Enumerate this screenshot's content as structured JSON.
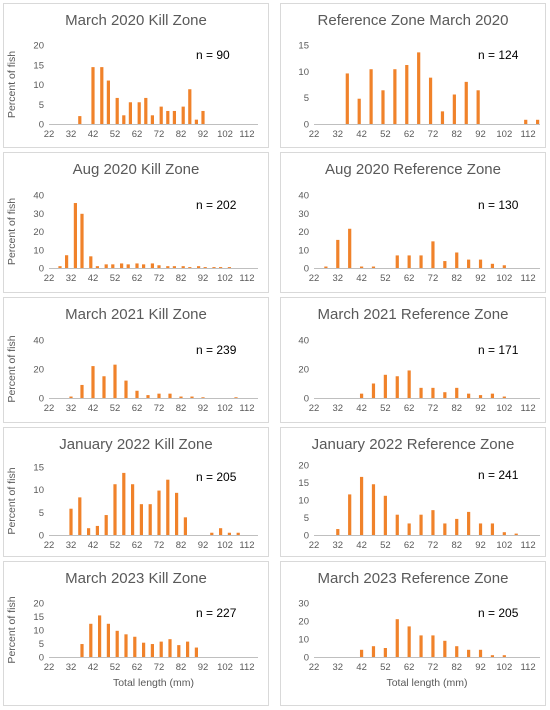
{
  "style": {
    "bar_color": "#F0822A",
    "axis_color": "#BFBFBF",
    "border_color": "#D9D9D9"
  },
  "chart_data": [
    {
      "type": "bar",
      "title": "March 2020 Kill Zone",
      "n_label": "n = 90",
      "ylabel": "Percent of fish",
      "xlabel": "",
      "ylim": [
        0,
        20
      ],
      "yticks": [
        0,
        5,
        10,
        15,
        20
      ],
      "xtick_labels": [
        "22",
        "32",
        "42",
        "52",
        "62",
        "72",
        "82",
        "92",
        "102",
        "112"
      ],
      "x": [
        32,
        36,
        39,
        42,
        46,
        49,
        53,
        56,
        59,
        63,
        66,
        69,
        73,
        76,
        79,
        83,
        86,
        89,
        92,
        96,
        99,
        102,
        106,
        109,
        112
      ],
      "values": [
        0,
        2,
        0,
        14.4,
        14.4,
        11,
        6.6,
        2.2,
        5.5,
        5.5,
        6.6,
        2.2,
        4.4,
        3.3,
        3.3,
        4.4,
        8.8,
        1.1,
        3.3,
        0,
        0,
        0,
        0,
        0,
        0
      ]
    },
    {
      "type": "bar",
      "title": "Reference Zone March 2020",
      "n_label": "n = 124",
      "ylabel": "",
      "xlabel": "",
      "ylim": [
        0,
        15
      ],
      "yticks": [
        0,
        5,
        10,
        15
      ],
      "xtick_labels": [
        "22",
        "32",
        "42",
        "52",
        "62",
        "72",
        "82",
        "92",
        "102",
        "112"
      ],
      "x": [
        36,
        41,
        46,
        51,
        56,
        61,
        66,
        71,
        76,
        81,
        86,
        91,
        96,
        101,
        106,
        111,
        116
      ],
      "values": [
        9.6,
        4.8,
        10.4,
        6.4,
        10.4,
        11.2,
        13.6,
        8.8,
        2.4,
        5.6,
        8,
        6.4,
        0,
        0,
        0,
        0.8,
        0.8
      ]
    },
    {
      "type": "bar",
      "title": "Aug 2020 Kill Zone",
      "n_label": "n = 202",
      "ylabel": "Percent of fish",
      "xlabel": "",
      "ylim": [
        0,
        40
      ],
      "yticks": [
        0,
        10,
        20,
        30,
        40
      ],
      "xtick_labels": [
        "22",
        "32",
        "42",
        "52",
        "62",
        "72",
        "82",
        "92",
        "102",
        "112"
      ],
      "x": [
        27,
        30,
        34,
        37,
        41,
        44,
        48,
        51,
        55,
        58,
        62,
        65,
        69,
        72,
        76,
        79,
        83,
        86,
        90,
        93,
        97,
        100,
        104
      ],
      "values": [
        1,
        7,
        35.6,
        29.7,
        6.4,
        1,
        2,
        2,
        2.5,
        2,
        2.5,
        2,
        2.5,
        1.5,
        1,
        1,
        1,
        0.5,
        1,
        0.5,
        0.5,
        0.5,
        0.5
      ]
    },
    {
      "type": "bar",
      "title": "Aug 2020 Reference Zone",
      "n_label": "n = 130",
      "ylabel": "",
      "xlabel": "",
      "ylim": [
        0,
        40
      ],
      "yticks": [
        0,
        10,
        20,
        30,
        40
      ],
      "xtick_labels": [
        "22",
        "32",
        "42",
        "52",
        "62",
        "72",
        "82",
        "92",
        "102",
        "112"
      ],
      "x": [
        27,
        32,
        37,
        42,
        47,
        52,
        57,
        62,
        67,
        72,
        77,
        82,
        87,
        92,
        97,
        102
      ],
      "values": [
        0.8,
        15.4,
        21.5,
        0.8,
        0.8,
        0,
        6.9,
        6.9,
        6.9,
        14.6,
        3.8,
        8.5,
        4.6,
        4.6,
        2.3,
        1.5
      ]
    },
    {
      "type": "bar",
      "title": "March 2021 Kill Zone",
      "n_label": "n = 239",
      "ylabel": "Percent of fish",
      "xlabel": "",
      "ylim": [
        0,
        40
      ],
      "yticks": [
        0,
        20,
        40
      ],
      "xtick_labels": [
        "22",
        "32",
        "42",
        "52",
        "62",
        "72",
        "82",
        "92",
        "102",
        "112"
      ],
      "x": [
        32,
        37,
        42,
        47,
        52,
        57,
        62,
        67,
        72,
        77,
        82,
        87,
        92,
        97,
        102,
        107,
        112
      ],
      "values": [
        1,
        9,
        22,
        15,
        23,
        12,
        5,
        2,
        3,
        3,
        1,
        1,
        0.5,
        0,
        0,
        0.5,
        0
      ]
    },
    {
      "type": "bar",
      "title": "March 2021 Reference Zone",
      "n_label": "n = 171",
      "ylabel": "",
      "xlabel": "",
      "ylim": [
        0,
        40
      ],
      "yticks": [
        0,
        20,
        40
      ],
      "xtick_labels": [
        "22",
        "32",
        "42",
        "52",
        "62",
        "72",
        "82",
        "92",
        "102",
        "112"
      ],
      "x": [
        42,
        47,
        52,
        57,
        62,
        67,
        72,
        77,
        82,
        87,
        92,
        97,
        102
      ],
      "values": [
        3,
        10,
        16,
        15,
        19,
        7,
        7,
        4,
        7,
        3,
        2,
        3,
        1
      ]
    },
    {
      "type": "bar",
      "title": "January 2022 Kill Zone",
      "n_label": "n = 205",
      "ylabel": "Percent of fish",
      "xlabel": "",
      "ylim": [
        0,
        15
      ],
      "yticks": [
        0,
        5,
        10,
        15
      ],
      "xtick_labels": [
        "22",
        "32",
        "42",
        "52",
        "62",
        "72",
        "82",
        "92",
        "102",
        "112"
      ],
      "x": [
        32,
        36,
        40,
        44,
        48,
        52,
        56,
        60,
        64,
        68,
        72,
        76,
        80,
        84,
        88,
        92,
        96,
        100,
        104,
        108,
        112
      ],
      "values": [
        5.8,
        8.3,
        1.5,
        2,
        4.4,
        11.2,
        13.7,
        11.2,
        6.8,
        6.8,
        9.8,
        12.2,
        9.3,
        3.9,
        0,
        0,
        0.5,
        1.5,
        0.5,
        0.5,
        0
      ]
    },
    {
      "type": "bar",
      "title": "January 2022 Reference Zone",
      "n_label": "n = 241",
      "ylabel": "",
      "xlabel": "",
      "ylim": [
        0,
        20
      ],
      "yticks": [
        0,
        5,
        10,
        15,
        20
      ],
      "xtick_labels": [
        "22",
        "32",
        "42",
        "52",
        "62",
        "72",
        "82",
        "92",
        "102",
        "112"
      ],
      "x": [
        32,
        37,
        42,
        47,
        52,
        57,
        62,
        67,
        72,
        77,
        82,
        87,
        92,
        97,
        102,
        107
      ],
      "values": [
        1.7,
        11.6,
        16.6,
        14.5,
        11.2,
        5.8,
        3.3,
        5.8,
        7.1,
        3.3,
        4.6,
        6.6,
        3.3,
        3.3,
        0.8,
        0.4
      ]
    },
    {
      "type": "bar",
      "title": "March 2023 Kill Zone",
      "n_label": "n = 227",
      "ylabel": "Percent of fish",
      "xlabel": "Total length (mm)",
      "ylim": [
        0,
        20
      ],
      "yticks": [
        0,
        5,
        10,
        15,
        20
      ],
      "xtick_labels": [
        "22",
        "32",
        "42",
        "52",
        "62",
        "72",
        "82",
        "92",
        "102",
        "112"
      ],
      "x": [
        37,
        41,
        45,
        49,
        53,
        57,
        61,
        65,
        69,
        73,
        77,
        81,
        85,
        89,
        93,
        97,
        101
      ],
      "values": [
        4.8,
        12.3,
        15.4,
        12.3,
        9.7,
        8.4,
        7.5,
        5.3,
        4.8,
        5.7,
        6.6,
        4.4,
        5.7,
        3.5,
        0,
        0,
        0
      ]
    },
    {
      "type": "bar",
      "title": "March 2023 Reference Zone",
      "n_label": "n = 205",
      "ylabel": "",
      "xlabel": "Total length (mm)",
      "ylim": [
        0,
        30
      ],
      "yticks": [
        0,
        10,
        20,
        30
      ],
      "xtick_labels": [
        "22",
        "32",
        "42",
        "52",
        "62",
        "72",
        "82",
        "92",
        "102",
        "112"
      ],
      "x": [
        42,
        47,
        52,
        57,
        62,
        67,
        72,
        77,
        82,
        87,
        92,
        97,
        102
      ],
      "values": [
        4,
        6,
        5,
        21,
        17,
        12,
        12,
        9,
        6,
        4,
        4,
        1,
        1
      ]
    }
  ]
}
